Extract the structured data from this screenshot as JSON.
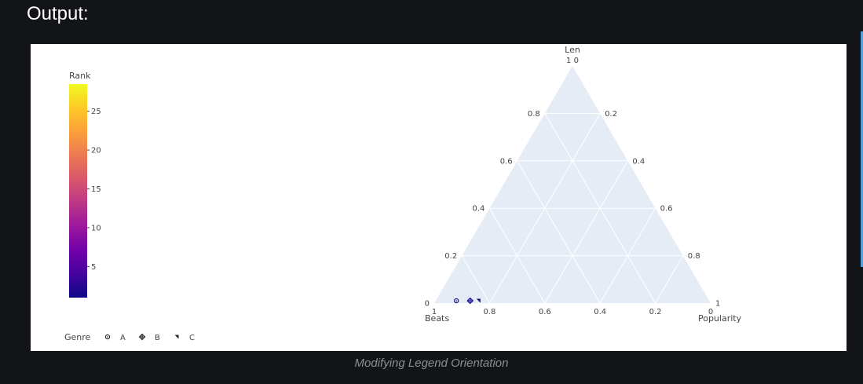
{
  "page": {
    "heading": "Output:",
    "caption": "Modifying Legend Orientation"
  },
  "colors": {
    "page_bg": "#131417",
    "plot_bg": "#e5ecf6",
    "grid": "#ffffff",
    "marker": "#0d0887"
  },
  "chart_data": {
    "type": "ternary-scatter",
    "axes": {
      "a": {
        "title": "Len",
        "ticks": [
          0.2,
          0.4,
          0.6,
          0.8
        ],
        "corner_label": "1 0"
      },
      "b": {
        "title": "Beats",
        "ticks": [
          0.8,
          0.6,
          0.4,
          0.2
        ],
        "corner_label": "1"
      },
      "c": {
        "title": "Popularity",
        "ticks": [
          0.2,
          0.4,
          0.6,
          0.8
        ],
        "corner_label": "1"
      }
    },
    "corner_zero_labels": {
      "left": "0",
      "right": "0"
    },
    "points": [
      {
        "genre": "A",
        "symbol": "circle-dot",
        "a": 0.0,
        "b": 0.92,
        "c": 0.08,
        "rank": 1
      },
      {
        "genre": "B",
        "symbol": "diamond-cross",
        "a": 0.0,
        "b": 0.87,
        "c": 0.13,
        "rank": 1
      },
      {
        "genre": "C",
        "symbol": "triangle",
        "a": 0.0,
        "b": 0.84,
        "c": 0.16,
        "rank": 1
      }
    ],
    "colorbar": {
      "title": "Rank",
      "min": 1,
      "max": 28.5,
      "ticks": [
        5,
        10,
        15,
        20,
        25
      ],
      "colorscale": [
        "#0d0887",
        "#46039f",
        "#7201a8",
        "#9c179e",
        "#bd3786",
        "#d8576b",
        "#ed7953",
        "#fb9f3a",
        "#fdca26",
        "#f0f921"
      ]
    },
    "legend": {
      "title": "Genre",
      "orientation": "horizontal",
      "placement": "bottom-left",
      "items": [
        {
          "label": "A",
          "symbol": "circle-dot"
        },
        {
          "label": "B",
          "symbol": "diamond-cross"
        },
        {
          "label": "C",
          "symbol": "triangle"
        }
      ]
    }
  }
}
